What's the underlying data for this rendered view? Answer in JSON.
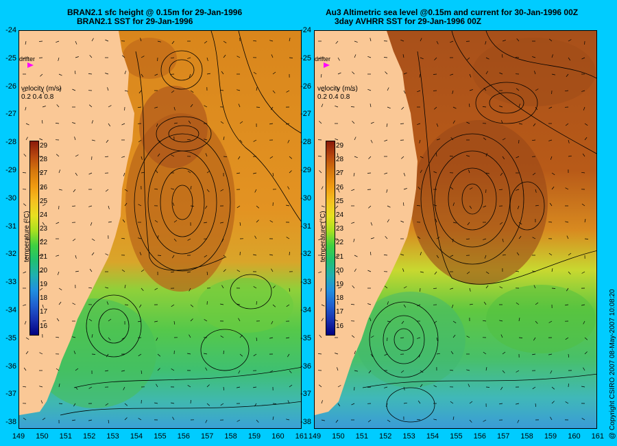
{
  "titles": {
    "left_line1": "BRAN2.1 sfc height @ 0.15m for 29-Jan-1996",
    "left_line2": "BRAN2.1 SST for 29-Jan-1996",
    "right_line1": "Au3 Altimetric sea level  @0.15m and current for 30-Jan-1996 00Z",
    "right_line2": "3day AVHRR SST for 29-Jan-1996 00Z"
  },
  "y_axis_labels": [
    "-24",
    "-25",
    "-26",
    "-27",
    "-28",
    "-29",
    "-30",
    "-31",
    "-32",
    "-33",
    "-34",
    "-35",
    "-36",
    "-37",
    "-38"
  ],
  "x_axis_labels": [
    "149",
    "150",
    "151",
    "152",
    "153",
    "154",
    "155",
    "156",
    "157",
    "158",
    "159",
    "160",
    "161"
  ],
  "x_axis_labels_right": [
    "149",
    "150",
    "151",
    "152",
    "153",
    "154",
    "155",
    "156",
    "157",
    "158",
    "159",
    "160",
    "161"
  ],
  "drifter_label": "drifter",
  "velocity_legend": {
    "title": "velocity (m/s)",
    "values": "0.2 0.4 0.8"
  },
  "colorbar": {
    "title": "temperature (°C)",
    "ticks": [
      "29",
      "28",
      "27",
      "26",
      "25",
      "24",
      "23",
      "22",
      "21",
      "20",
      "19",
      "18",
      "17",
      "16"
    ],
    "colors": [
      "#8b1a0a",
      "#b8480f",
      "#d6780d",
      "#f09a10",
      "#f5c020",
      "#e8e020",
      "#a8e020",
      "#40d040",
      "#20c070",
      "#20b0b0",
      "#2090e0",
      "#2060d0",
      "#1830b0",
      "#000080"
    ]
  },
  "copyright": "@ Copyright CSIRO 2007   08-May-2007 10:08:20"
}
